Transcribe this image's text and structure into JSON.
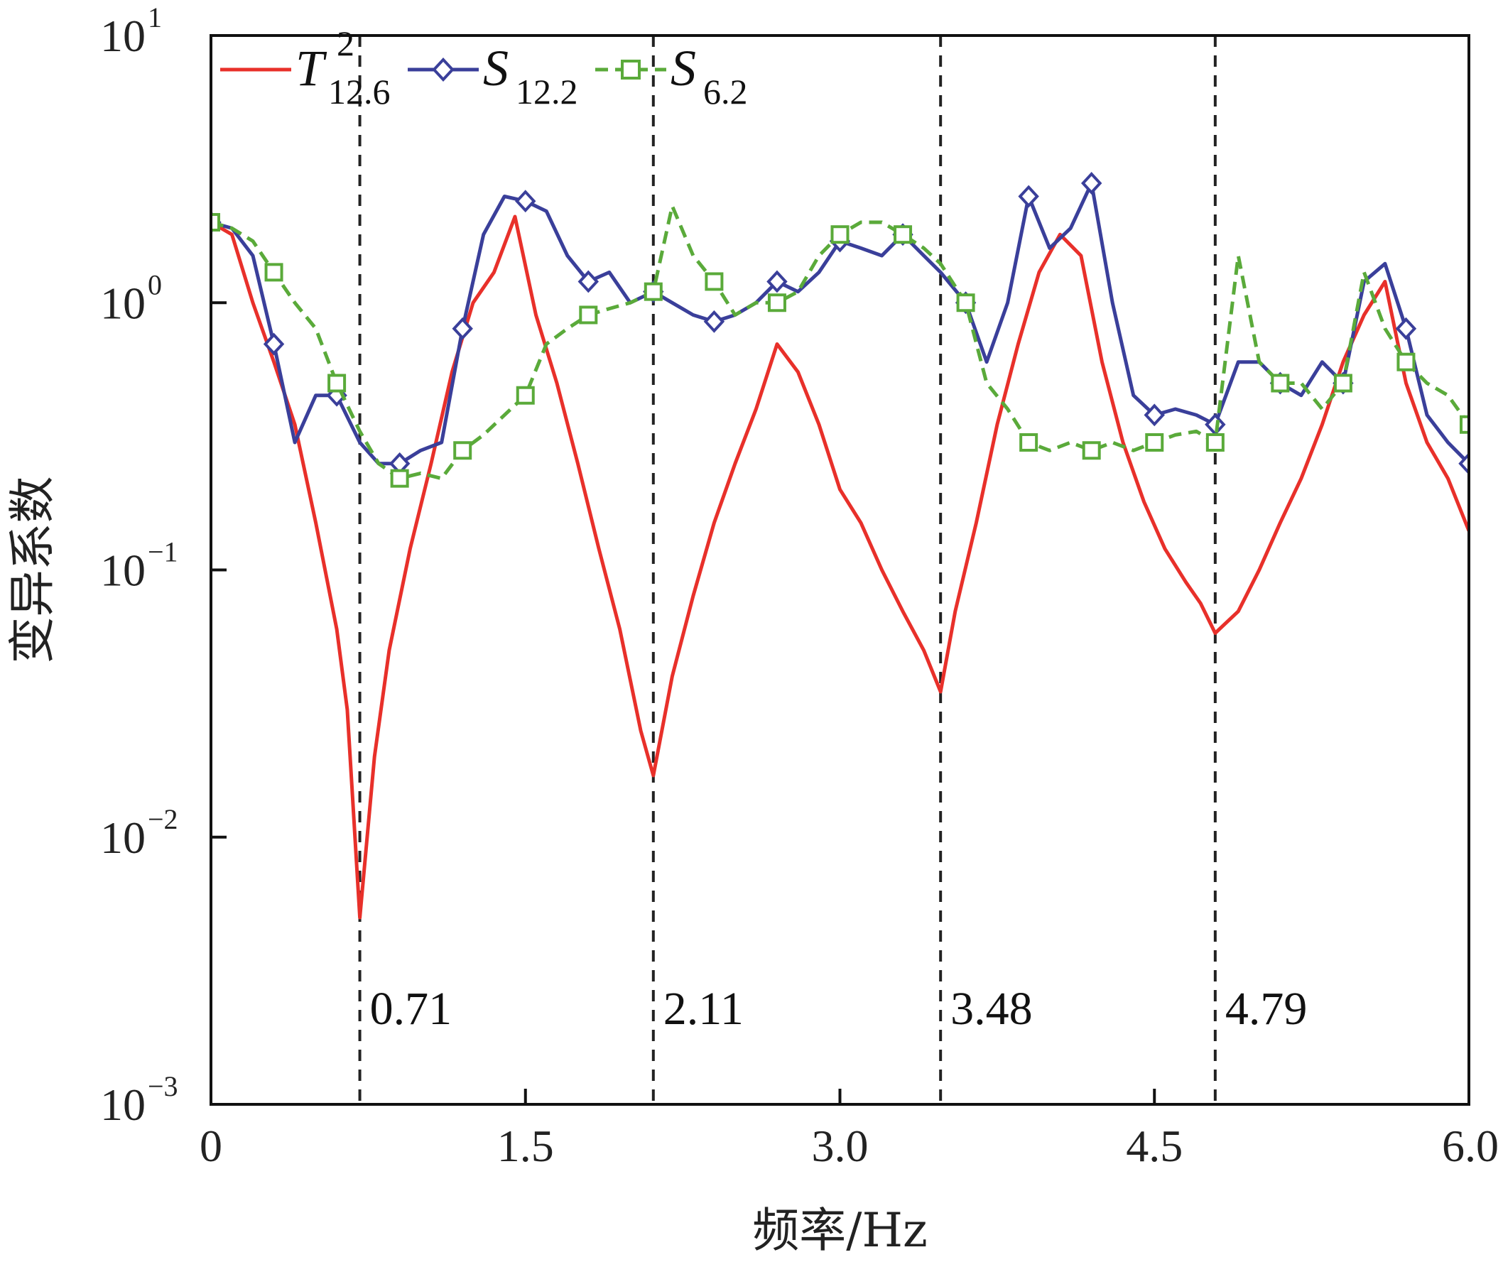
{
  "chart_data": {
    "type": "line",
    "xlabel": "频率/Hz",
    "ylabel": "变异系数",
    "xlim": [
      0,
      6.0
    ],
    "ylim": [
      0.001,
      10
    ],
    "yscale": "log",
    "grid": false,
    "legend_position": "top-left",
    "x_ticks": [
      "0",
      "1.5",
      "3.0",
      "4.5",
      "6.0"
    ],
    "y_ticks": [
      {
        "base": "10",
        "exp": "1"
      },
      {
        "base": "10",
        "exp": "0"
      },
      {
        "base": "10",
        "exp": "−1"
      },
      {
        "base": "10",
        "exp": "−2"
      },
      {
        "base": "10",
        "exp": "−3"
      }
    ],
    "vertical_lines": [
      {
        "x": 0.71,
        "label": "0.71"
      },
      {
        "x": 2.11,
        "label": "2.11"
      },
      {
        "x": 3.48,
        "label": "3.48"
      },
      {
        "x": 4.79,
        "label": "4.79"
      }
    ],
    "series": [
      {
        "name": "T",
        "name_sup": "2",
        "name_sub": "12.6",
        "color": "#e8302a",
        "style": "solid",
        "marker": "none",
        "x": [
          0,
          0.1,
          0.2,
          0.3,
          0.4,
          0.5,
          0.6,
          0.65,
          0.71,
          0.78,
          0.85,
          0.95,
          1.05,
          1.15,
          1.25,
          1.35,
          1.45,
          1.55,
          1.65,
          1.75,
          1.85,
          1.95,
          2.05,
          2.11,
          2.2,
          2.3,
          2.4,
          2.5,
          2.6,
          2.7,
          2.8,
          2.9,
          3.0,
          3.1,
          3.2,
          3.3,
          3.4,
          3.48,
          3.55,
          3.65,
          3.75,
          3.85,
          3.95,
          4.05,
          4.15,
          4.25,
          4.35,
          4.45,
          4.55,
          4.65,
          4.72,
          4.79,
          4.9,
          5.0,
          5.1,
          5.2,
          5.3,
          5.4,
          5.5,
          5.6,
          5.7,
          5.8,
          5.9,
          6.0
        ],
        "values": [
          2.0,
          1.8,
          1.0,
          0.6,
          0.35,
          0.15,
          0.06,
          0.03,
          0.005,
          0.02,
          0.05,
          0.12,
          0.25,
          0.55,
          1.0,
          1.3,
          2.1,
          0.9,
          0.5,
          0.25,
          0.12,
          0.06,
          0.025,
          0.017,
          0.04,
          0.08,
          0.15,
          0.25,
          0.4,
          0.7,
          0.55,
          0.35,
          0.2,
          0.15,
          0.1,
          0.07,
          0.05,
          0.035,
          0.07,
          0.15,
          0.35,
          0.7,
          1.3,
          1.8,
          1.5,
          0.6,
          0.3,
          0.18,
          0.12,
          0.09,
          0.075,
          0.058,
          0.07,
          0.1,
          0.15,
          0.22,
          0.35,
          0.6,
          0.9,
          1.2,
          0.5,
          0.3,
          0.22,
          0.14
        ]
      },
      {
        "name": "S",
        "name_sub": "12.2",
        "color": "#3a3f9a",
        "style": "solid",
        "marker": "diamond",
        "x": [
          0,
          0.1,
          0.2,
          0.3,
          0.4,
          0.5,
          0.6,
          0.71,
          0.8,
          0.9,
          1.0,
          1.1,
          1.2,
          1.3,
          1.4,
          1.5,
          1.6,
          1.7,
          1.8,
          1.9,
          2.0,
          2.11,
          2.2,
          2.3,
          2.4,
          2.5,
          2.6,
          2.7,
          2.8,
          2.9,
          3.0,
          3.1,
          3.2,
          3.3,
          3.4,
          3.48,
          3.6,
          3.7,
          3.8,
          3.9,
          4.0,
          4.1,
          4.2,
          4.3,
          4.4,
          4.5,
          4.6,
          4.7,
          4.79,
          4.9,
          5.0,
          5.1,
          5.2,
          5.3,
          5.4,
          5.5,
          5.6,
          5.7,
          5.8,
          5.9,
          6.0
        ],
        "values": [
          2.0,
          1.9,
          1.5,
          0.7,
          0.3,
          0.45,
          0.45,
          0.3,
          0.25,
          0.25,
          0.28,
          0.3,
          0.8,
          1.8,
          2.5,
          2.4,
          2.2,
          1.5,
          1.2,
          1.3,
          1.0,
          1.1,
          1.0,
          0.9,
          0.85,
          0.9,
          1.0,
          1.2,
          1.1,
          1.3,
          1.7,
          1.6,
          1.5,
          1.8,
          1.5,
          1.3,
          1.0,
          0.6,
          1.0,
          2.5,
          1.6,
          1.9,
          2.8,
          1.0,
          0.45,
          0.38,
          0.4,
          0.38,
          0.35,
          0.6,
          0.6,
          0.5,
          0.45,
          0.6,
          0.5,
          1.2,
          1.4,
          0.8,
          0.38,
          0.3,
          0.25
        ]
      },
      {
        "name": "S",
        "name_sub": "6.2",
        "color": "#5aaa3a",
        "style": "dashed",
        "marker": "square",
        "x": [
          0,
          0.1,
          0.2,
          0.3,
          0.4,
          0.5,
          0.6,
          0.71,
          0.8,
          0.9,
          1.0,
          1.1,
          1.2,
          1.3,
          1.4,
          1.5,
          1.6,
          1.7,
          1.8,
          1.9,
          2.0,
          2.11,
          2.2,
          2.3,
          2.4,
          2.5,
          2.6,
          2.7,
          2.8,
          2.9,
          3.0,
          3.1,
          3.2,
          3.3,
          3.4,
          3.48,
          3.6,
          3.7,
          3.8,
          3.9,
          4.0,
          4.1,
          4.2,
          4.3,
          4.4,
          4.5,
          4.6,
          4.7,
          4.79,
          4.9,
          5.0,
          5.1,
          5.2,
          5.3,
          5.4,
          5.5,
          5.6,
          5.7,
          5.8,
          5.9,
          6.0
        ],
        "values": [
          2.0,
          1.9,
          1.7,
          1.3,
          1.0,
          0.8,
          0.5,
          0.33,
          0.25,
          0.22,
          0.23,
          0.22,
          0.28,
          0.32,
          0.38,
          0.45,
          0.7,
          0.8,
          0.9,
          0.95,
          1.0,
          1.1,
          2.3,
          1.5,
          1.2,
          0.9,
          1.0,
          1.0,
          1.1,
          1.5,
          1.8,
          2.0,
          2.0,
          1.8,
          1.6,
          1.4,
          1.0,
          0.5,
          0.4,
          0.3,
          0.28,
          0.3,
          0.28,
          0.3,
          0.28,
          0.3,
          0.32,
          0.33,
          0.3,
          1.5,
          0.6,
          0.5,
          0.5,
          0.4,
          0.5,
          1.3,
          0.8,
          0.6,
          0.5,
          0.45,
          0.35
        ]
      }
    ]
  }
}
